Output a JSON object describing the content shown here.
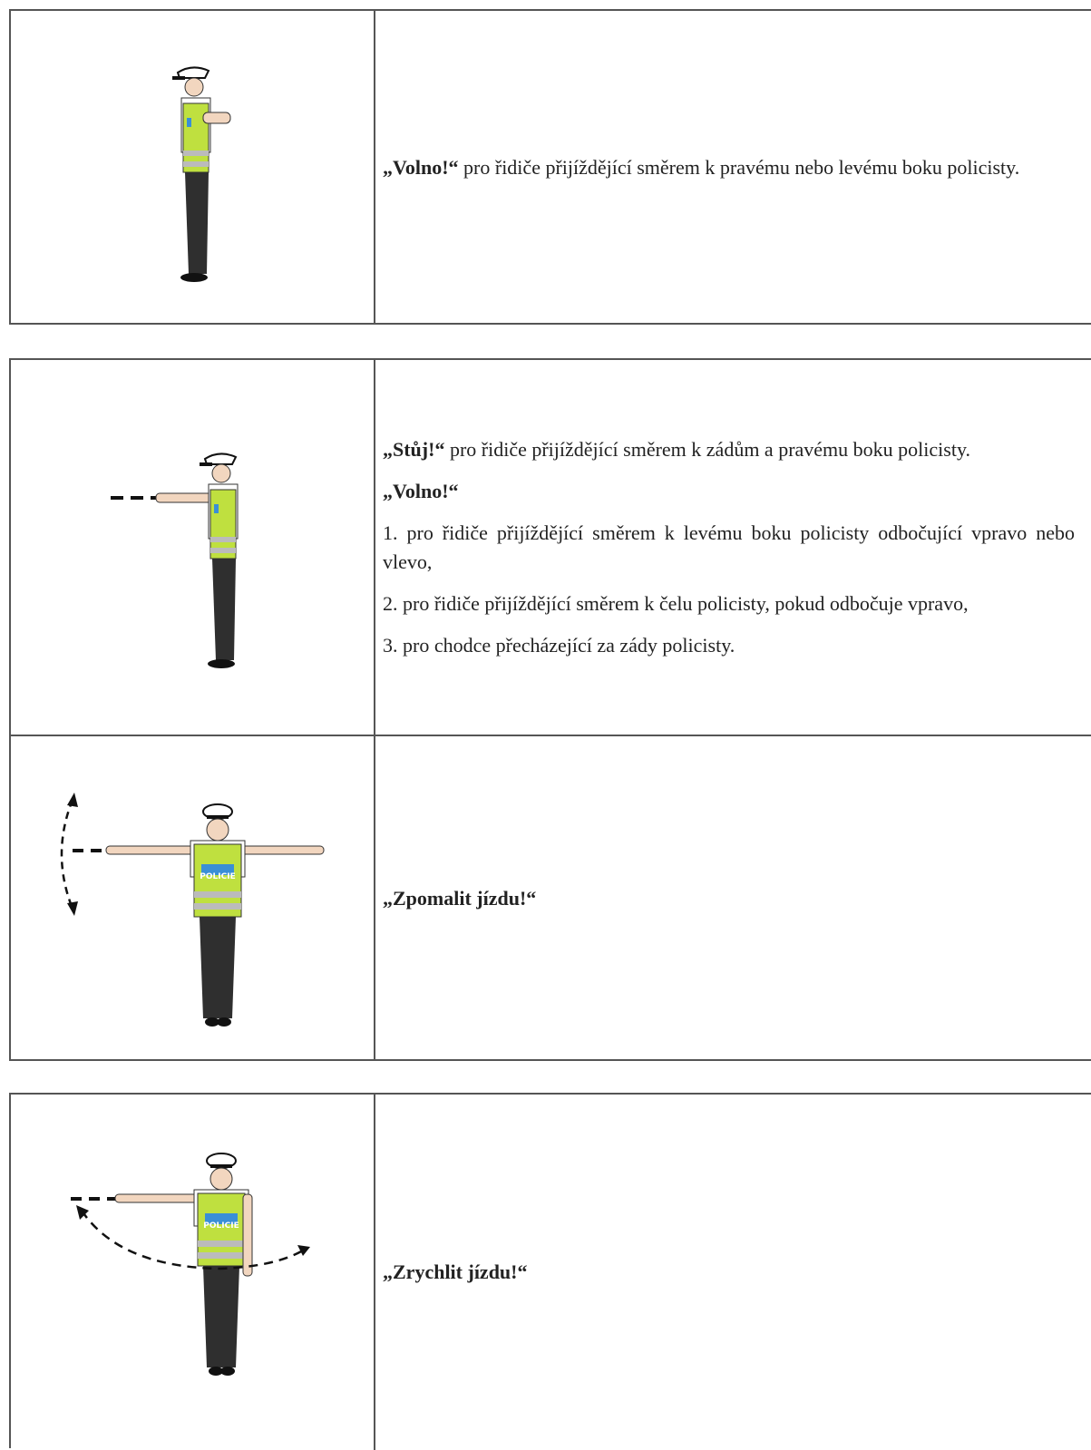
{
  "tables": [
    {
      "rows": [
        {
          "paragraphs": [
            {
              "lead": "„Volno!“",
              "text": "pro řidiče přijíždějící směrem k pravému nebo levému boku policisty."
            }
          ]
        }
      ]
    },
    {
      "rows": [
        {
          "paragraphs": [
            {
              "lead": "„Stůj!“",
              "text": "pro řidiče přijíždějící směrem k zádům a pravému boku policisty."
            },
            {
              "lead": "„Volno!“"
            },
            {
              "text": "1. pro řidiče přijíždějící směrem k levému boku policisty odbočující vpravo nebo vlevo,"
            },
            {
              "text": "2. pro řidiče přijíždějící směrem k čelu policisty, pokud odbočuje vpravo,"
            },
            {
              "text": "3. pro chodce přecházející za zády policisty."
            }
          ]
        },
        {
          "vest_label": "POLICIE",
          "paragraphs": [
            {
              "lead": "„Zpomalit jízdu!“"
            }
          ]
        }
      ]
    },
    {
      "rows": [
        {
          "vest_label": "POLICIE",
          "paragraphs": [
            {
              "lead": "„Zrychlit jízdu!“"
            }
          ]
        }
      ]
    }
  ]
}
